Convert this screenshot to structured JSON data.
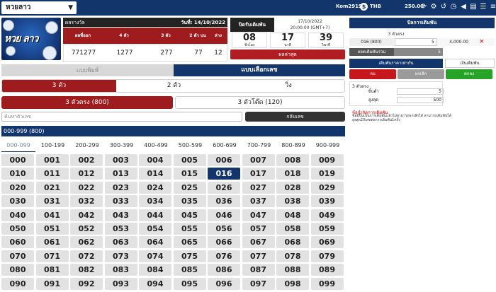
{
  "topbar": {
    "lottery_select": "หวยลาว",
    "username": "Kom2919",
    "currency_symbol": "$",
    "currency": "THB",
    "balance": "250.00"
  },
  "logo": {
    "text": "หวย ลาว"
  },
  "result": {
    "title": "ผลรางวัล",
    "date": "วันที่: 14/10/2022",
    "cols": [
      "ผลที่ออก",
      "4 ตัว",
      "3 ตัว",
      "2 ตัว บน",
      "ล่าง"
    ],
    "values": [
      "771277",
      "1277",
      "277",
      "77",
      "12"
    ]
  },
  "countdown": {
    "title": "ปิดรับเดิมพัน",
    "close_date": "17/10/2022",
    "close_time": "20:00:00 (GMT+7)",
    "boxes": [
      {
        "n": "08",
        "u": "ชั่วโมง"
      },
      {
        "n": "17",
        "u": "นาที"
      },
      {
        "n": "39",
        "u": "วินาที"
      }
    ],
    "latest_button": "ผลล่าสุด"
  },
  "mode": {
    "print_label": "แบบพิมพ์",
    "select_label": "แบบเลือกเลข"
  },
  "digit_tabs": [
    "3 ตัว",
    "2 ตัว",
    "วิ่ง"
  ],
  "sub_tabs": [
    "3 ตัวตรง (800)",
    "3 ตัวโต๊ด (120)"
  ],
  "search": {
    "placeholder": "ค้นหาตัวเลข",
    "reverse_button": "กลับเลข"
  },
  "range_header": "000-999 (800)",
  "ranges": [
    "000-099",
    "100-199",
    "200-299",
    "300-399",
    "400-499",
    "500-599",
    "600-699",
    "700-799",
    "800-899",
    "900-999"
  ],
  "grid": [
    [
      "000",
      "001",
      "002",
      "003",
      "004",
      "005",
      "006",
      "007",
      "008",
      "009"
    ],
    [
      "010",
      "011",
      "012",
      "013",
      "014",
      "015",
      "016",
      "017",
      "018",
      "019"
    ],
    [
      "020",
      "021",
      "022",
      "023",
      "024",
      "025",
      "026",
      "027",
      "028",
      "029"
    ],
    [
      "030",
      "031",
      "032",
      "033",
      "034",
      "035",
      "036",
      "037",
      "038",
      "039"
    ],
    [
      "040",
      "041",
      "042",
      "043",
      "044",
      "045",
      "046",
      "047",
      "048",
      "049"
    ],
    [
      "050",
      "051",
      "052",
      "053",
      "054",
      "055",
      "056",
      "057",
      "058",
      "059"
    ],
    [
      "060",
      "061",
      "062",
      "063",
      "064",
      "065",
      "066",
      "067",
      "068",
      "069"
    ],
    [
      "070",
      "071",
      "072",
      "073",
      "074",
      "075",
      "076",
      "077",
      "078",
      "079"
    ],
    [
      "080",
      "081",
      "082",
      "083",
      "084",
      "085",
      "086",
      "087",
      "088",
      "089"
    ],
    [
      "090",
      "091",
      "092",
      "093",
      "094",
      "095",
      "096",
      "097",
      "098",
      "099"
    ]
  ],
  "selected_number": "016",
  "bet_panel": {
    "title": "บิลการเดิมพัน",
    "type": "3 ตัวตรง",
    "row": {
      "number": "016 (800)",
      "qty": "5",
      "payout": "4,000.00",
      "remove": "×"
    },
    "total_label": "ยอดเดิมพันรวม",
    "total_value": "5",
    "price_tab_a": "เดิมพันราคาเท่ากัน",
    "price_tab_b": "เงินเดิมพัน",
    "btn_delete": "ลบ",
    "btn_cancel": "ยกเลิก",
    "btn_confirm": "ตกลง",
    "info_title": "3 ตัวตรง",
    "min_label": "ขั้นต่ำ",
    "min_value": "5",
    "max_label": "สูงสุด",
    "max_value": "500",
    "note_title": "ข้อจำกัดการเดิมพัน",
    "note": "ข้อมีปิ้มเป็นการเดิมพันแล้วไม่สามารถยกเลิกได้ สามารถเดิมพันได้สูงสุด20เลขต่อการเดิมพัน1ครั้ง"
  },
  "colors": {
    "navy": "#12356b",
    "red": "#9e1b1e",
    "green": "#27a327"
  }
}
